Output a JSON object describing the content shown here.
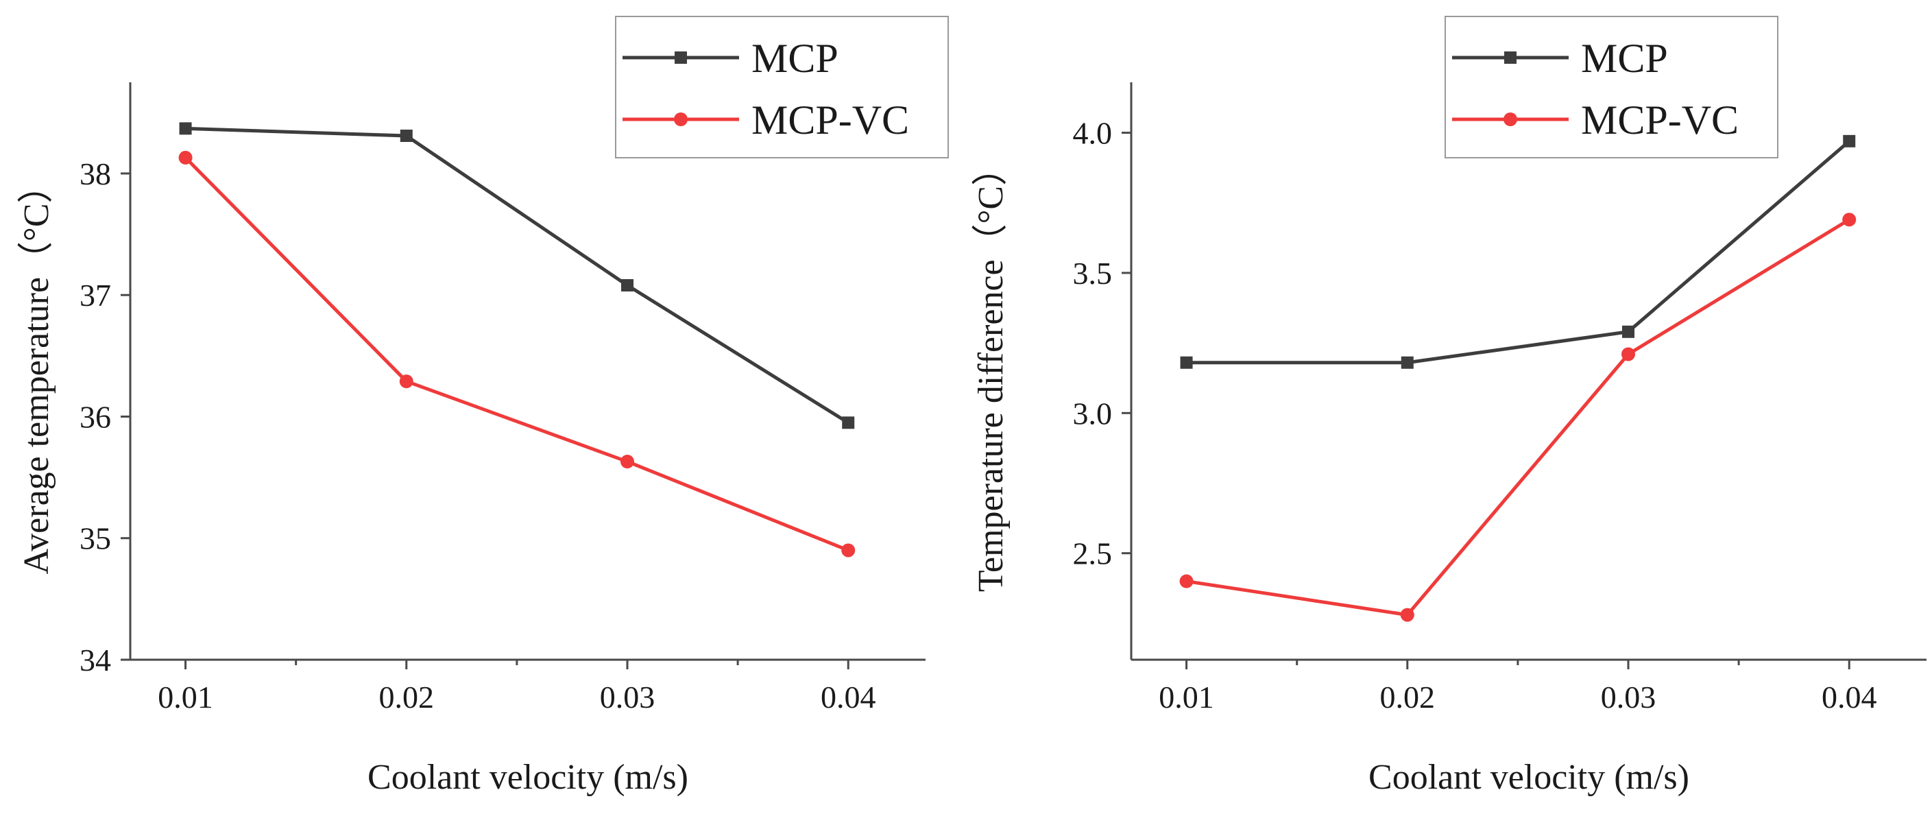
{
  "chart_data": [
    {
      "type": "line",
      "title": "",
      "xlabel": "Coolant velocity (m/s)",
      "ylabel": "Average temperature（°C）",
      "x": [
        0.01,
        0.02,
        0.03,
        0.04
      ],
      "x_tick_labels": [
        "0.01",
        "0.02",
        "0.03",
        "0.04"
      ],
      "xlim": [
        0.0075,
        0.0435
      ],
      "ylim": [
        34,
        38.75
      ],
      "y_ticks": [
        34,
        35,
        36,
        37,
        38
      ],
      "y_tick_labels": [
        "34",
        "35",
        "36",
        "37",
        "38"
      ],
      "legend": "top-right",
      "grid": false,
      "series": [
        {
          "name": "MCP",
          "color": "#3d3d3d",
          "marker": "square",
          "values": [
            38.37,
            38.31,
            37.08,
            35.95
          ]
        },
        {
          "name": "MCP-VC",
          "color": "#ef3b3b",
          "marker": "circle",
          "values": [
            38.13,
            36.29,
            35.63,
            34.9
          ]
        }
      ]
    },
    {
      "type": "line",
      "title": "",
      "xlabel": "Coolant velocity (m/s)",
      "ylabel": "Temperature difference（°C）",
      "x": [
        0.01,
        0.02,
        0.03,
        0.04
      ],
      "x_tick_labels": [
        "0.01",
        "0.02",
        "0.03",
        "0.04"
      ],
      "xlim": [
        0.0075,
        0.0435
      ],
      "ylim": [
        2.12,
        4.18
      ],
      "y_ticks": [
        2.5,
        3.0,
        3.5,
        4.0
      ],
      "y_tick_labels": [
        "2.5",
        "3.0",
        "3.5",
        "4.0"
      ],
      "legend": "top-right",
      "grid": false,
      "series": [
        {
          "name": "MCP",
          "color": "#3d3d3d",
          "marker": "square",
          "values": [
            3.18,
            3.18,
            3.29,
            3.97
          ]
        },
        {
          "name": "MCP-VC",
          "color": "#ef3b3b",
          "marker": "circle",
          "values": [
            2.4,
            2.28,
            3.21,
            3.69
          ]
        }
      ]
    }
  ]
}
